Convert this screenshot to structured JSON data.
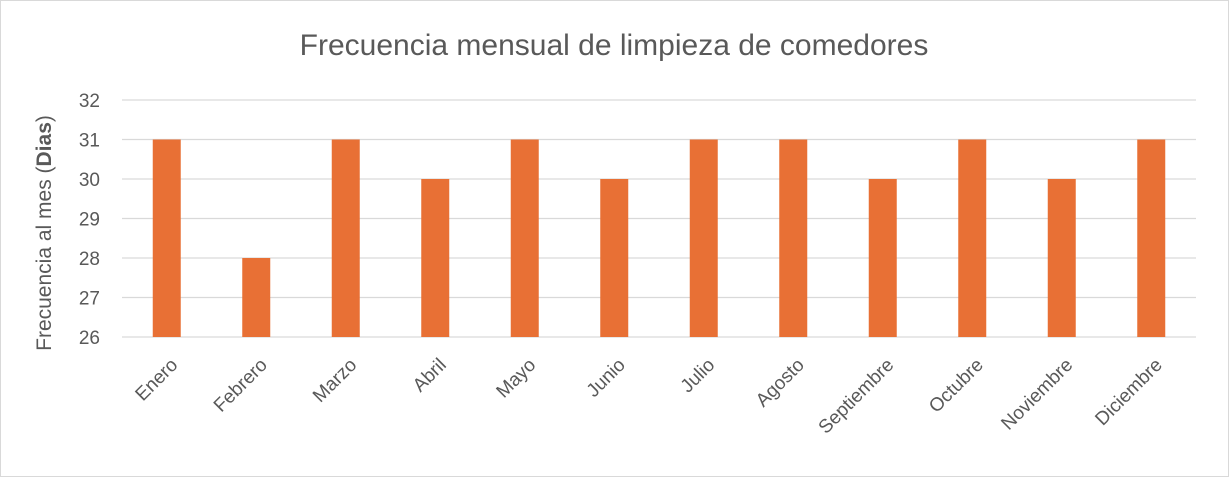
{
  "chart_data": {
    "type": "bar",
    "title": "Frecuencia  mensual de limpieza de comedores",
    "ylabel_prefix": "Frecuencia al mes (",
    "ylabel_bold": "Dias",
    "ylabel_suffix": ")",
    "xlabel": "",
    "categories": [
      "Enero",
      "Febrero",
      "Marzo",
      "Abril",
      "Mayo",
      "Junio",
      "Julio",
      "Agosto",
      "Septiembre",
      "Octubre",
      "Noviembre",
      "Diciembre"
    ],
    "values": [
      31,
      28,
      31,
      30,
      31,
      30,
      31,
      31,
      30,
      31,
      30,
      31
    ],
    "ylim": [
      26,
      32
    ],
    "yticks": [
      26,
      27,
      28,
      29,
      30,
      31,
      32
    ],
    "grid": true,
    "legend": "none",
    "bar_color": "#e87035",
    "grid_color": "#d9d9d9",
    "text_color": "#595959"
  }
}
